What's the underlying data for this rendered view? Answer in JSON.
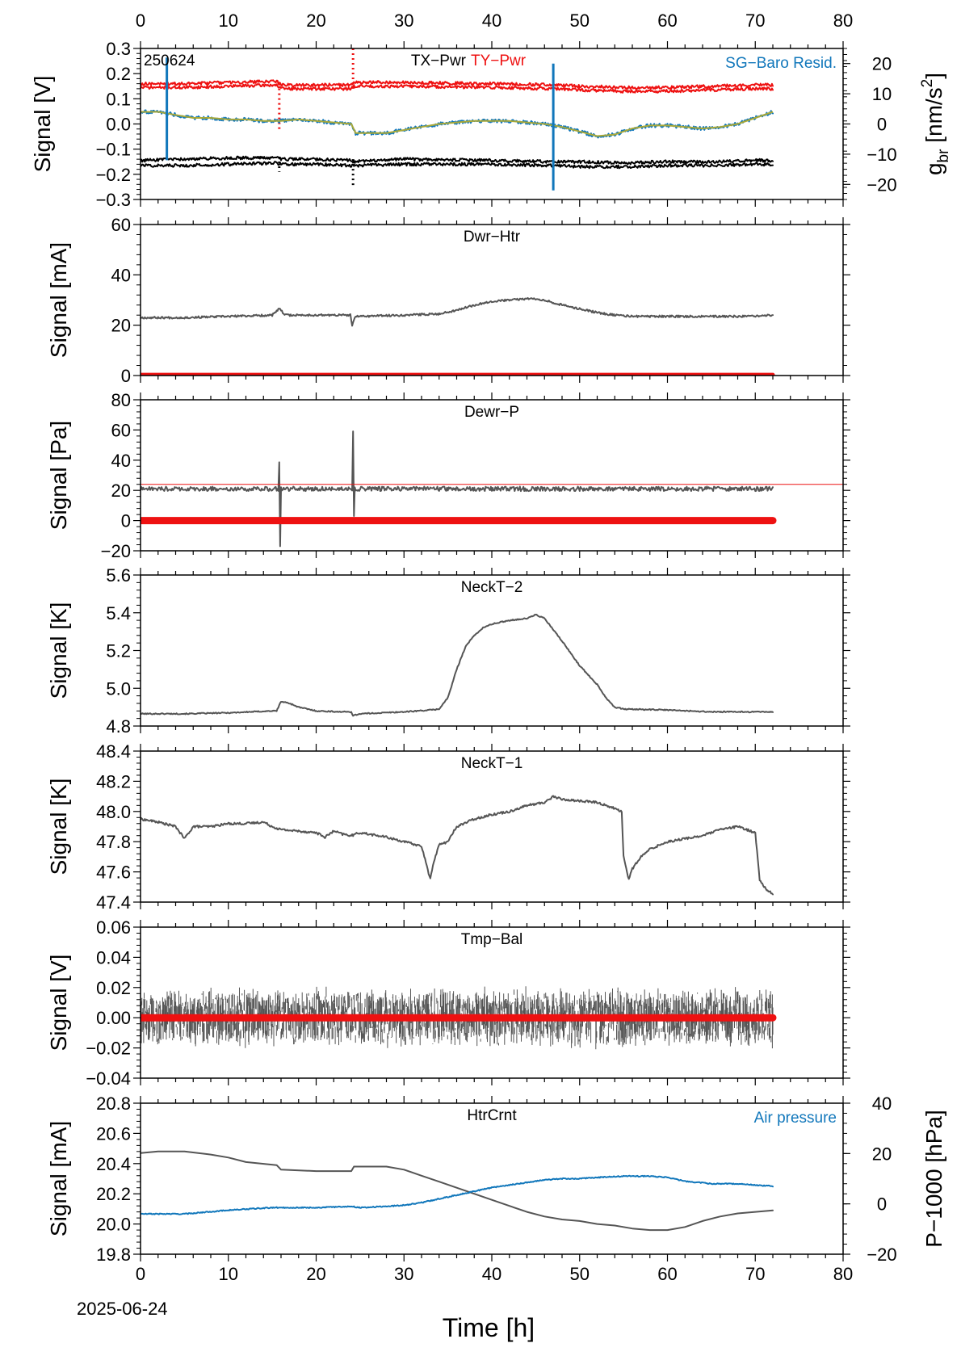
{
  "date_label": "2025-06-24",
  "xlabel": "Time [h]",
  "colors": {
    "gray": "#555555",
    "red": "#ee1111",
    "blue": "#1177bb",
    "olive": "#a8a838",
    "black": "#000000"
  },
  "chart_data": [
    {
      "type": "line",
      "title": "TX−Pwr",
      "title2": "TY−Pwr",
      "id_label": "250624",
      "right_legend": "SG−Baro Resid.",
      "ylabel": "Signal [V]",
      "y2label_main": "g",
      "y2label_sub": "br",
      "y2label_unit": " [nm/s",
      "y2label_sup": "2",
      "y2label_end": "]",
      "xlim": [
        0,
        80
      ],
      "ylim": [
        -0.3,
        0.3
      ],
      "yticks": [
        "−0.3",
        "−0.2",
        "−0.1",
        "0.0",
        "0.1",
        "0.2",
        "0.3"
      ],
      "y2lim": [
        -25,
        25
      ],
      "y2ticks": [
        "−20",
        "−10",
        "0",
        "10",
        "20"
      ],
      "series": [
        {
          "name": "TX−Pwr",
          "color": "black",
          "x": [
            0,
            5,
            10,
            15.5,
            16,
            20,
            24,
            24.3,
            30,
            40,
            47,
            50,
            55,
            60,
            65,
            70,
            72
          ],
          "y": [
            -0.145,
            -0.14,
            -0.135,
            -0.135,
            -0.14,
            -0.14,
            -0.145,
            -0.15,
            -0.14,
            -0.145,
            -0.15,
            -0.15,
            -0.155,
            -0.15,
            -0.15,
            -0.145,
            -0.145
          ]
        },
        {
          "name": "TX−Pwr (2)",
          "color": "black",
          "x": [
            0,
            5,
            10,
            15.5,
            16,
            20,
            24,
            24.3,
            30,
            40,
            47,
            50,
            55,
            60,
            65,
            70,
            72
          ],
          "y": [
            -0.165,
            -0.165,
            -0.16,
            -0.155,
            -0.16,
            -0.16,
            -0.165,
            -0.165,
            -0.16,
            -0.16,
            -0.165,
            -0.17,
            -0.17,
            -0.165,
            -0.165,
            -0.16,
            -0.16
          ]
        },
        {
          "name": "TY−Pwr",
          "color": "red",
          "x": [
            0,
            5,
            10,
            15.5,
            16,
            20,
            24,
            24.3,
            30,
            40,
            47,
            50,
            55,
            60,
            65,
            70,
            72
          ],
          "y": [
            0.16,
            0.16,
            0.165,
            0.17,
            0.155,
            0.155,
            0.155,
            0.165,
            0.165,
            0.16,
            0.155,
            0.15,
            0.145,
            0.145,
            0.15,
            0.155,
            0.155
          ]
        },
        {
          "name": "TY−Pwr (2)",
          "color": "red",
          "x": [
            0,
            5,
            10,
            15.5,
            16,
            20,
            24,
            24.3,
            30,
            40,
            47,
            50,
            55,
            60,
            65,
            70,
            72
          ],
          "y": [
            0.145,
            0.145,
            0.15,
            0.155,
            0.14,
            0.14,
            0.14,
            0.15,
            0.15,
            0.145,
            0.14,
            0.135,
            0.13,
            0.13,
            0.135,
            0.14,
            0.14
          ]
        },
        {
          "name": "SG−Baro Resid.",
          "axis": "y2",
          "color": "blue",
          "x": [
            0,
            2,
            4,
            6,
            8,
            10,
            12,
            14,
            15.5,
            16,
            18,
            20,
            22,
            24,
            24.5,
            26,
            28,
            30,
            32,
            34,
            36,
            38,
            40,
            42,
            44,
            46,
            48,
            50,
            52,
            54,
            56,
            58,
            60,
            62,
            64,
            66,
            68,
            70,
            72
          ],
          "y": [
            4,
            4,
            3,
            2,
            2,
            1.5,
            1.5,
            1,
            1,
            1,
            1.5,
            1,
            0.5,
            0,
            -3,
            -3,
            -3,
            -2,
            -1,
            0,
            0.5,
            1,
            1,
            1,
            0.5,
            0,
            -1,
            -2.5,
            -4,
            -3.5,
            -1.5,
            -0.5,
            -0.5,
            -1,
            -1.5,
            -1,
            0,
            2,
            4
          ]
        }
      ]
    },
    {
      "type": "line",
      "title": "Dwr−Htr",
      "ylabel": "Signal [mA]",
      "xlim": [
        0,
        80
      ],
      "ylim": [
        0,
        60
      ],
      "yticks": [
        "0",
        "20",
        "40",
        "60"
      ],
      "series": [
        {
          "color": "gray",
          "x": [
            0,
            5,
            10,
            15,
            15.8,
            16.5,
            20,
            23.9,
            24.1,
            24.5,
            30,
            34,
            36,
            38,
            40,
            42,
            44,
            45,
            46,
            48,
            50,
            52,
            54,
            56,
            60,
            65,
            70,
            72
          ],
          "y": [
            23,
            23,
            23.5,
            24,
            26.5,
            24,
            24,
            24,
            20,
            23.5,
            24,
            24.5,
            26,
            28,
            29.5,
            30,
            30.5,
            30.5,
            30,
            28,
            26.5,
            25,
            24,
            23.5,
            23.5,
            23.5,
            23.5,
            24
          ]
        },
        {
          "color": "red",
          "x": [
            0,
            72
          ],
          "y": [
            0.3,
            0.3
          ]
        }
      ]
    },
    {
      "type": "line",
      "title": "Dewr−P",
      "ylabel": "Signal [Pa]",
      "xlim": [
        0,
        80
      ],
      "ylim": [
        -20,
        80
      ],
      "yticks": [
        "−20",
        "0",
        "20",
        "40",
        "60",
        "80"
      ],
      "series": [
        {
          "color": "gray",
          "x": [
            0,
            10,
            15.7,
            15.8,
            15.9,
            16,
            20,
            24.1,
            24.2,
            24.3,
            24.4,
            30,
            40,
            50,
            60,
            70,
            72
          ],
          "y": [
            21,
            21,
            21,
            38,
            -17,
            21,
            21,
            21,
            59,
            3,
            21,
            21,
            21,
            21,
            21,
            21,
            21
          ]
        },
        {
          "color": "red",
          "x": [
            0,
            80
          ],
          "y": [
            24,
            24
          ]
        },
        {
          "color": "red",
          "x": [
            0,
            72
          ],
          "y": [
            0,
            0
          ]
        }
      ]
    },
    {
      "type": "line",
      "title": "NeckT−2",
      "ylabel": "Signal [K]",
      "xlim": [
        0,
        80
      ],
      "ylim": [
        4.8,
        5.6
      ],
      "yticks": [
        "4.8",
        "5.0",
        "5.2",
        "5.4",
        "5.6"
      ],
      "series": [
        {
          "color": "gray",
          "x": [
            0,
            5,
            10,
            15,
            15.5,
            16,
            17,
            18,
            19,
            20,
            23,
            24,
            24.2,
            25,
            30,
            33,
            34,
            35,
            36,
            37,
            38,
            39,
            40,
            42,
            44,
            45,
            46,
            48,
            50,
            52,
            53,
            54,
            55,
            60,
            65,
            70,
            72
          ],
          "y": [
            4.865,
            4.865,
            4.87,
            4.88,
            4.88,
            4.93,
            4.92,
            4.9,
            4.89,
            4.88,
            4.875,
            4.875,
            4.855,
            4.865,
            4.875,
            4.885,
            4.89,
            4.95,
            5.1,
            5.22,
            5.28,
            5.32,
            5.34,
            5.36,
            5.37,
            5.39,
            5.37,
            5.25,
            5.12,
            5.02,
            4.95,
            4.9,
            4.89,
            4.885,
            4.875,
            4.875,
            4.875
          ]
        }
      ]
    },
    {
      "type": "line",
      "title": "NeckT−1",
      "ylabel": "Signal [K]",
      "xlim": [
        0,
        80
      ],
      "ylim": [
        47.4,
        48.4
      ],
      "yticks": [
        "47.4",
        "47.6",
        "47.8",
        "48.0",
        "48.2",
        "48.4"
      ],
      "series": [
        {
          "color": "gray",
          "x": [
            0,
            2,
            4,
            5,
            6,
            8,
            10,
            12,
            14,
            15,
            16,
            18,
            20,
            21,
            22,
            23,
            24,
            25,
            26,
            28,
            30,
            32,
            33,
            33.3,
            34,
            35,
            36,
            38,
            40,
            42,
            44,
            46,
            47,
            48,
            50,
            52,
            54,
            54.8,
            55,
            55.6,
            56,
            57,
            58,
            60,
            62,
            64,
            66,
            68,
            70,
            70.5,
            71,
            72
          ],
          "y": [
            47.95,
            47.93,
            47.9,
            47.82,
            47.9,
            47.9,
            47.92,
            47.92,
            47.93,
            47.9,
            47.88,
            47.87,
            47.86,
            47.83,
            47.87,
            47.85,
            47.84,
            47.86,
            47.85,
            47.83,
            47.8,
            47.77,
            47.55,
            47.65,
            47.78,
            47.8,
            47.9,
            47.95,
            47.98,
            48.0,
            48.04,
            48.06,
            48.1,
            48.08,
            48.07,
            48.06,
            48.02,
            48.0,
            47.7,
            47.55,
            47.62,
            47.7,
            47.75,
            47.8,
            47.82,
            47.84,
            47.88,
            47.9,
            47.86,
            47.55,
            47.5,
            47.45
          ]
        }
      ]
    },
    {
      "type": "line",
      "title": "Tmp−Bal",
      "ylabel": "Signal [V]",
      "xlim": [
        0,
        80
      ],
      "ylim": [
        -0.04,
        0.06
      ],
      "yticks": [
        "−0.04",
        "−0.02",
        "0.00",
        "0.02",
        "0.04",
        "0.06"
      ],
      "series": [
        {
          "color": "gray",
          "x": [
            0,
            72
          ],
          "y": [
            0.0,
            0.0
          ],
          "band": [
            -0.02,
            0.02
          ]
        },
        {
          "color": "red",
          "x": [
            0,
            72
          ],
          "y": [
            0.0,
            0.0
          ]
        }
      ]
    },
    {
      "type": "line",
      "title": "HtrCrnt",
      "right_legend": "Air pressure",
      "ylabel": "Signal [mA]",
      "y2label": "P−1000 [hPa]",
      "xlim": [
        0,
        80
      ],
      "ylim": [
        19.8,
        20.8
      ],
      "yticks": [
        "19.8",
        "20.0",
        "20.2",
        "20.4",
        "20.6",
        "20.8"
      ],
      "y2lim": [
        -20,
        40
      ],
      "y2ticks": [
        "−20",
        "0",
        "20",
        "40"
      ],
      "series": [
        {
          "color": "gray",
          "x": [
            0,
            2,
            5,
            8,
            10,
            12,
            15.5,
            16,
            20,
            24,
            24.3,
            28,
            30,
            32,
            34,
            36,
            38,
            40,
            42,
            44,
            46,
            48,
            50,
            52,
            54,
            56,
            58,
            60,
            62,
            64,
            66,
            68,
            70,
            72
          ],
          "y": [
            20.47,
            20.48,
            20.48,
            20.46,
            20.44,
            20.41,
            20.39,
            20.36,
            20.35,
            20.35,
            20.38,
            20.38,
            20.36,
            20.32,
            20.28,
            20.24,
            20.2,
            20.16,
            20.12,
            20.08,
            20.05,
            20.03,
            20.02,
            20.0,
            19.99,
            19.97,
            19.96,
            19.96,
            19.98,
            20.02,
            20.05,
            20.07,
            20.08,
            20.09
          ]
        },
        {
          "color": "blue",
          "axis": "y2",
          "x": [
            0,
            5,
            10,
            15,
            20,
            24,
            25,
            28,
            30,
            32,
            34,
            36,
            38,
            40,
            42,
            44,
            46,
            48,
            50,
            52,
            55,
            58,
            60,
            62,
            65,
            68,
            70,
            72
          ],
          "y": [
            -4,
            -4,
            -2.5,
            -1.5,
            -1.5,
            -1,
            -1.5,
            -1,
            -0.5,
            0.5,
            2,
            3.5,
            5,
            6.5,
            7.5,
            8.5,
            9.5,
            10,
            10,
            10.5,
            11,
            11,
            10.5,
            9,
            8,
            8,
            7.5,
            7
          ]
        }
      ]
    }
  ],
  "xticks": [
    "0",
    "10",
    "20",
    "30",
    "40",
    "50",
    "60",
    "70",
    "80"
  ]
}
